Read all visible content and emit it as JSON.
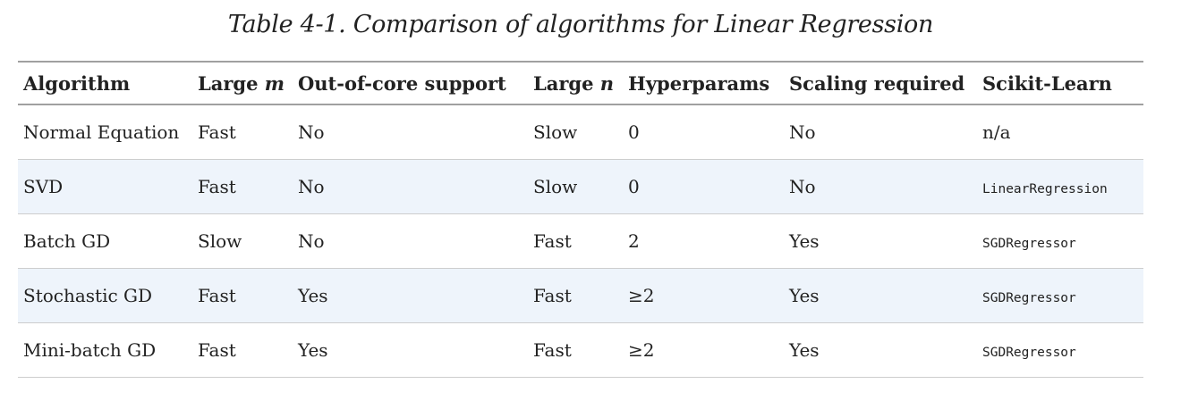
{
  "caption": "Table 4-1. Comparison of algorithms for Linear Regression",
  "table": {
    "headers": {
      "algorithm": "Algorithm",
      "large_m_prefix": "Large",
      "large_m_var": "m",
      "out_of_core": "Out-of-core support",
      "large_n_prefix": "Large",
      "large_n_var": "n",
      "hyperparams": "Hyperparams",
      "scaling": "Scaling required",
      "sklearn": "Scikit-Learn"
    },
    "rows": [
      {
        "algorithm": "Normal Equation",
        "large_m": "Fast",
        "out_of_core": "No",
        "large_n": "Slow",
        "hyperparams": "0",
        "scaling": "No",
        "sklearn": "n/a"
      },
      {
        "algorithm": "SVD",
        "large_m": "Fast",
        "out_of_core": "No",
        "large_n": "Slow",
        "hyperparams": "0",
        "scaling": "No",
        "sklearn": "LinearRegression"
      },
      {
        "algorithm": "Batch GD",
        "large_m": "Slow",
        "out_of_core": "No",
        "large_n": "Fast",
        "hyperparams": "2",
        "scaling": "Yes",
        "sklearn": "SGDRegressor"
      },
      {
        "algorithm": "Stochastic GD",
        "large_m": "Fast",
        "out_of_core": "Yes",
        "large_n": "Fast",
        "hyperparams": "≥2",
        "scaling": "Yes",
        "sklearn": "SGDRegressor"
      },
      {
        "algorithm": "Mini-batch GD",
        "large_m": "Fast",
        "out_of_core": "Yes",
        "large_n": "Fast",
        "hyperparams": "≥2",
        "scaling": "Yes",
        "sklearn": "SGDRegressor"
      }
    ]
  }
}
